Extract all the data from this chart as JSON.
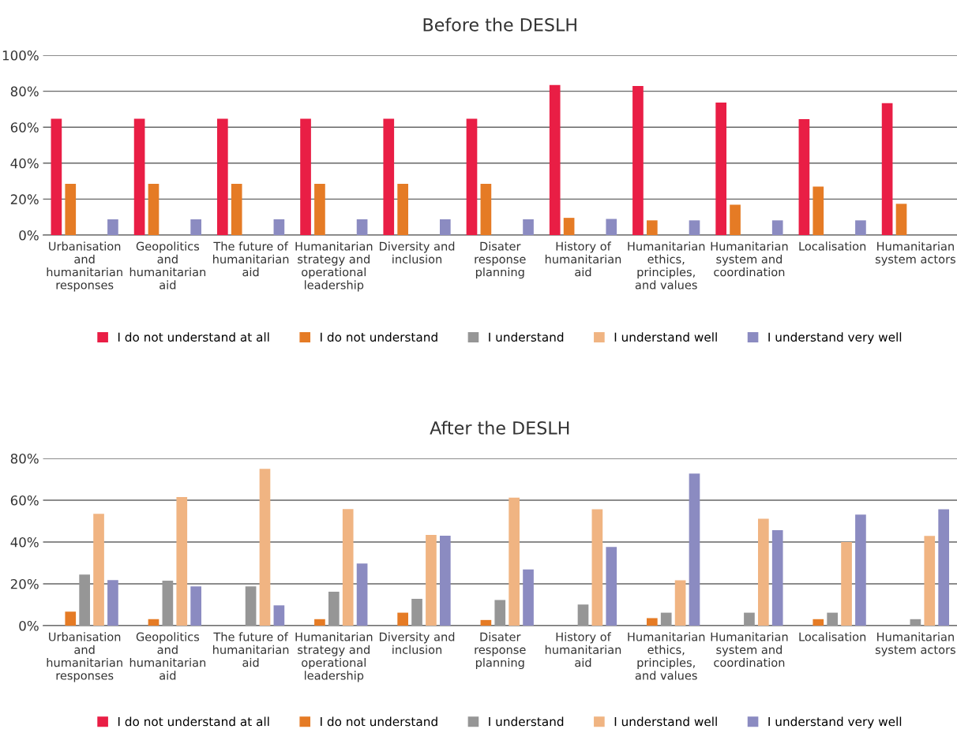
{
  "chart_data": [
    {
      "type": "bar",
      "title": "Before the DESLH",
      "categories": [
        "Urbanisation and humanitarian responses",
        "Geopolitics and humanitarian aid",
        "The future of humanitarian aid",
        "Humanitarian strategy and operational leadership",
        "Diversity and inclusion",
        "Disater response planning",
        "History of humanitarian aid",
        "Humanitarian ethics, principles, and values",
        "Humanitarian system and coordination",
        "Localisation",
        "Humanitarian system actors"
      ],
      "series": [
        {
          "name": "I do not understand at all",
          "color": "#e91e45",
          "values": [
            64.7,
            64.7,
            64.7,
            64.7,
            64.7,
            64.7,
            83.4,
            82.9,
            73.7,
            64.5,
            73.4
          ]
        },
        {
          "name": "I do not understand",
          "color": "#e57b25",
          "values": [
            28.5,
            28.5,
            28.5,
            28.5,
            28.5,
            28.5,
            9.6,
            8.2,
            16.9,
            27.0,
            17.4
          ]
        },
        {
          "name": "I understand",
          "color": "#969696",
          "values": [
            0,
            0,
            0,
            0,
            0,
            0,
            0,
            0,
            0,
            0,
            0
          ]
        },
        {
          "name": "I understand well",
          "color": "#f0b482",
          "values": [
            0,
            0,
            0,
            0,
            0,
            0,
            0,
            0,
            0,
            0,
            0
          ]
        },
        {
          "name": "I understand very well",
          "color": "#8b8bc1",
          "values": [
            8.8,
            8.8,
            8.8,
            8.8,
            8.8,
            8.8,
            9.0,
            8.2,
            8.2,
            8.2,
            0
          ]
        }
      ],
      "ylim": [
        0,
        100
      ],
      "yticks": [
        {
          "value": 0,
          "label": "0%"
        },
        {
          "value": 20,
          "label": "20%"
        },
        {
          "value": 40,
          "label": "40%"
        },
        {
          "value": 60,
          "label": "60%"
        },
        {
          "value": 80,
          "label": "80%"
        },
        {
          "value": 100,
          "label": "100%"
        }
      ],
      "grid": "y",
      "legend": "bottom"
    },
    {
      "type": "bar",
      "title": "After the DESLH",
      "categories": [
        "Urbanisation and humanitarian responses",
        "Geopolitics and humanitarian aid",
        "The future of humanitarian aid",
        "Humanitarian strategy and operational leadership",
        "Diversity and inclusion",
        "Disater response planning",
        "History of humanitarian aid",
        "Humanitarian ethics, principles, and values",
        "Humanitarian system and coordination",
        "Localisation",
        "Humanitarian system actors"
      ],
      "series": [
        {
          "name": "I do not understand at all",
          "color": "#e91e45",
          "values": [
            0,
            0,
            0,
            0,
            0,
            0,
            0,
            0,
            0,
            0,
            0
          ]
        },
        {
          "name": "I do not understand",
          "color": "#e57b25",
          "values": [
            6.7,
            3.1,
            0,
            3.1,
            6.2,
            2.7,
            0,
            3.6,
            0,
            3.1,
            0
          ]
        },
        {
          "name": "I understand",
          "color": "#969696",
          "values": [
            24.4,
            21.5,
            18.8,
            16.2,
            12.8,
            12.3,
            10.1,
            6.2,
            6.2,
            6.2,
            3.1
          ]
        },
        {
          "name": "I understand well",
          "color": "#f0b482",
          "values": [
            53.5,
            61.5,
            75.0,
            55.8,
            43.4,
            61.2,
            55.7,
            21.7,
            51.1,
            40.0,
            42.9
          ]
        },
        {
          "name": "I understand very well",
          "color": "#8b8bc1",
          "values": [
            21.8,
            18.8,
            9.7,
            29.7,
            43.0,
            26.9,
            37.6,
            72.7,
            45.7,
            53.1,
            55.7
          ]
        }
      ],
      "ylim": [
        0,
        80
      ],
      "yticks": [
        {
          "value": 0,
          "label": "0%"
        },
        {
          "value": 20,
          "label": "20%"
        },
        {
          "value": 40,
          "label": "40%"
        },
        {
          "value": 60,
          "label": "60%"
        },
        {
          "value": 80,
          "label": "80%"
        }
      ],
      "grid": "y",
      "legend": "bottom"
    }
  ]
}
